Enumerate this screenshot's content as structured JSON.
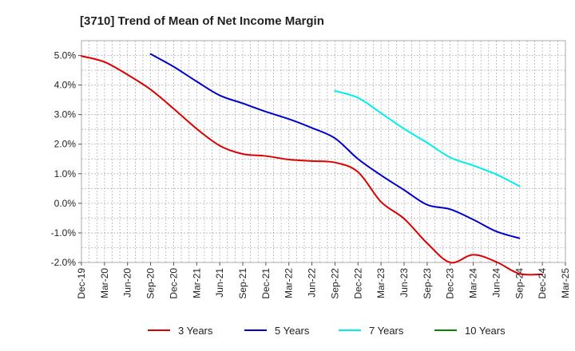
{
  "chart_data": {
    "type": "line",
    "title": "[3710]  Trend of Mean of Net Income Margin",
    "xlabel": "",
    "ylabel": "",
    "x_ticks": [
      "Dec-19",
      "Mar-20",
      "Jun-20",
      "Sep-20",
      "Dec-20",
      "Mar-21",
      "Jun-21",
      "Sep-21",
      "Dec-21",
      "Mar-22",
      "Jun-22",
      "Sep-22",
      "Dec-22",
      "Mar-23",
      "Jun-23",
      "Sep-23",
      "Dec-23",
      "Mar-24",
      "Jun-24",
      "Sep-24",
      "Dec-24",
      "Mar-25"
    ],
    "y_ticks": [
      "5.0%",
      "4.0%",
      "3.0%",
      "2.0%",
      "1.0%",
      "0.0%",
      "-1.0%",
      "-2.0%"
    ],
    "ylim": [
      -2.0,
      5.5
    ],
    "grid": true,
    "legend_position": "bottom",
    "series": [
      {
        "name": "3 Years",
        "color": "#dd0000",
        "start_index": 0,
        "values": [
          4.98,
          4.78,
          4.35,
          3.85,
          3.2,
          2.52,
          1.95,
          1.67,
          1.6,
          1.48,
          1.43,
          1.38,
          1.06,
          0.05,
          -0.52,
          -1.35,
          -2.0,
          -1.74,
          -1.98,
          -2.38,
          -2.4
        ]
      },
      {
        "name": "5 Years",
        "color": "#0000cc",
        "start_index": 3,
        "values": [
          5.05,
          4.62,
          4.12,
          3.65,
          3.38,
          3.1,
          2.85,
          2.55,
          2.2,
          1.5,
          0.95,
          0.45,
          -0.05,
          -0.2,
          -0.55,
          -0.95,
          -1.18
        ]
      },
      {
        "name": "7 Years",
        "color": "#00eeee",
        "start_index": 11,
        "values": [
          3.8,
          3.57,
          3.05,
          2.52,
          2.05,
          1.55,
          1.28,
          0.98,
          0.58
        ]
      },
      {
        "name": "10 Years",
        "color": "#008800",
        "start_index": 0,
        "values": []
      }
    ]
  }
}
